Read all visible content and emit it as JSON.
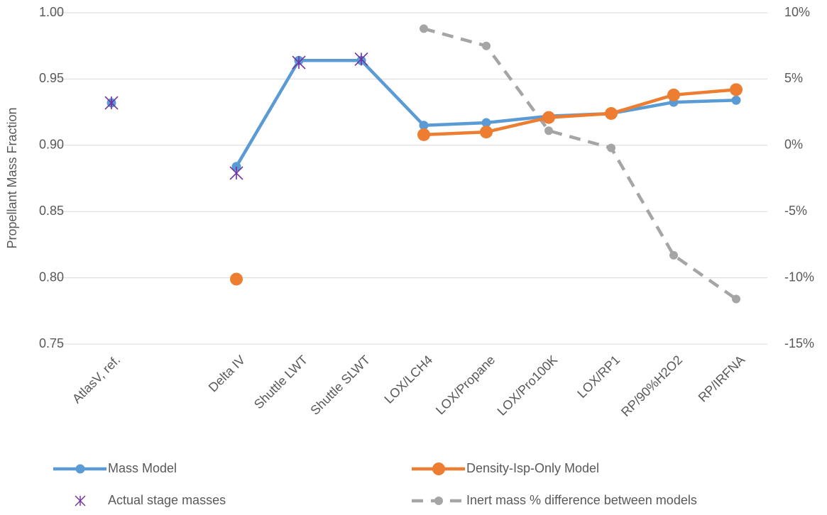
{
  "chart_data": {
    "type": "line",
    "y_label": "Propellant Mass Fraction",
    "categories": [
      "AtlasV, ref.",
      null,
      "Delta IV",
      "Shuttle LWT",
      "Shuttle SLWT",
      "LOX/LCH4",
      "LOX/Propane",
      "LOX/Pro100K",
      "LOX/RP1",
      "RP/90%H2O2",
      "RP/IRFNA"
    ],
    "ylim": [
      0.75,
      1.0
    ],
    "yticks": [
      {
        "value": 0.75,
        "label": "0.75"
      },
      {
        "value": 0.8,
        "label": "0.80"
      },
      {
        "value": 0.85,
        "label": "0.85"
      },
      {
        "value": 0.9,
        "label": "0.90"
      },
      {
        "value": 0.95,
        "label": "0.95"
      },
      {
        "value": 1.0,
        "label": "1.00"
      }
    ],
    "y2lim": [
      -15,
      10
    ],
    "y2ticks": [
      {
        "value": -15,
        "label": "-15%"
      },
      {
        "value": -10,
        "label": "-10%"
      },
      {
        "value": -5,
        "label": "-5%"
      },
      {
        "value": 0,
        "label": "0%"
      },
      {
        "value": 5,
        "label": "5%"
      },
      {
        "value": 10,
        "label": "10%"
      }
    ],
    "grid": true,
    "series": [
      {
        "name": "Mass Model",
        "color": "#5b9bd5",
        "values": [
          0.932,
          null,
          0.884,
          0.964,
          0.964,
          0.915,
          0.917,
          0.922,
          0.924,
          0.9325,
          0.934
        ]
      },
      {
        "name": "Density-Isp-Only Model",
        "color": "#ed7d31",
        "values": [
          null,
          null,
          0.799,
          null,
          null,
          0.908,
          0.91,
          0.921,
          0.924,
          0.938,
          0.942
        ]
      },
      {
        "name": "Actual stage masses",
        "color": "#7030a0",
        "type": "scatter",
        "values": [
          0.932,
          null,
          0.879,
          0.9625,
          0.965,
          null,
          null,
          null,
          null,
          null,
          null
        ]
      },
      {
        "name": "Inert mass % difference between models",
        "color": "#a5a5a5",
        "dashed": true,
        "axis": "y2",
        "values": [
          null,
          null,
          null,
          null,
          null,
          8.8,
          7.5,
          1.1,
          -0.2,
          -8.3,
          -11.6
        ]
      }
    ]
  }
}
